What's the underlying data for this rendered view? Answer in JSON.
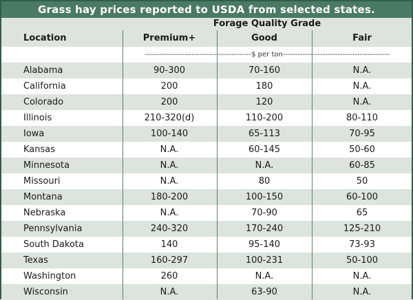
{
  "title": "Grass hay prices reported to USDA from selected states.",
  "header": {
    "group_label": "Forage Quality Grade",
    "location": "Location",
    "premium": "Premium+",
    "good": "Good",
    "fair": "Fair",
    "unit_text": "-------------------------------------------$ per ton-------------------------------------------"
  },
  "rows": [
    {
      "location": "Alabama",
      "premium": "90-300",
      "good": "70-160",
      "fair": "N.A."
    },
    {
      "location": "California",
      "premium": "200",
      "good": "180",
      "fair": "N.A."
    },
    {
      "location": "Colorado",
      "premium": "200",
      "good": "120",
      "fair": "N.A."
    },
    {
      "location": "Illinois",
      "premium": "210-320(d)",
      "good": "110-200",
      "fair": "80-110"
    },
    {
      "location": "Iowa",
      "premium": "100-140",
      "good": "65-113",
      "fair": "70-95"
    },
    {
      "location": "Kansas",
      "premium": "N.A.",
      "good": "60-145",
      "fair": "50-60"
    },
    {
      "location": "Minnesota",
      "premium": "N.A.",
      "good": "N.A.",
      "fair": "60-85"
    },
    {
      "location": "Missouri",
      "premium": "N.A.",
      "good": "80",
      "fair": "50"
    },
    {
      "location": "Montana",
      "premium": "180-200",
      "good": "100-150",
      "fair": "60-100"
    },
    {
      "location": "Nebraska",
      "premium": "N.A.",
      "good": "70-90",
      "fair": "65"
    },
    {
      "location": "Pennsylvania",
      "premium": "240-320",
      "good": "170-240",
      "fair": "125-210"
    },
    {
      "location": "South Dakota",
      "premium": "140",
      "good": "95-140",
      "fair": "73-93"
    },
    {
      "location": "Texas",
      "premium": "160-297",
      "good": "100-231",
      "fair": "50-100"
    },
    {
      "location": "Washington",
      "premium": "260",
      "good": "N.A.",
      "fair": "N.A."
    },
    {
      "location": "Wisconsin",
      "premium": "N.A.",
      "good": "63-90",
      "fair": "N.A."
    }
  ]
}
